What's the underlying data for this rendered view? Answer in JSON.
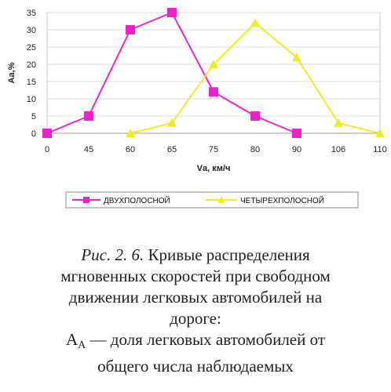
{
  "chart_data": {
    "type": "line",
    "categories": [
      "0",
      "45",
      "60",
      "65",
      "75",
      "80",
      "90",
      "106",
      "110"
    ],
    "series": [
      {
        "name": "ДВУХПОЛОСНОЙ",
        "color": "#ee22cc",
        "marker": "square",
        "values": [
          0,
          5,
          30,
          35,
          12,
          5,
          0,
          null,
          null
        ]
      },
      {
        "name": "ЧЕТЫРЕХПОЛОСНОЙ",
        "color": "#eded22",
        "marker": "triangle",
        "values": [
          null,
          null,
          0,
          3,
          20,
          32,
          22,
          3,
          0
        ]
      }
    ],
    "yticks": [
      "35",
      "30",
      "25",
      "20",
      "15",
      "10",
      "5",
      "0"
    ],
    "ylim": [
      0,
      35
    ],
    "xlabel": "Vа, км/ч",
    "ylabel": "Аа,%",
    "grid": "horizontal",
    "legend_position": "bottom"
  },
  "caption": {
    "fig_label": "Рис. 2. 6.",
    "line1_rest": " Кривые распределения",
    "line2": "мгновенных скоростей при свободном",
    "line3": "движении легковых автомобилей на",
    "line4": "дороге:",
    "line5_symbol": "А",
    "line5_subscript": "А",
    "line5_rest": " — доля легковых автомобилей от",
    "line6": "общего числа наблюдаемых"
  }
}
